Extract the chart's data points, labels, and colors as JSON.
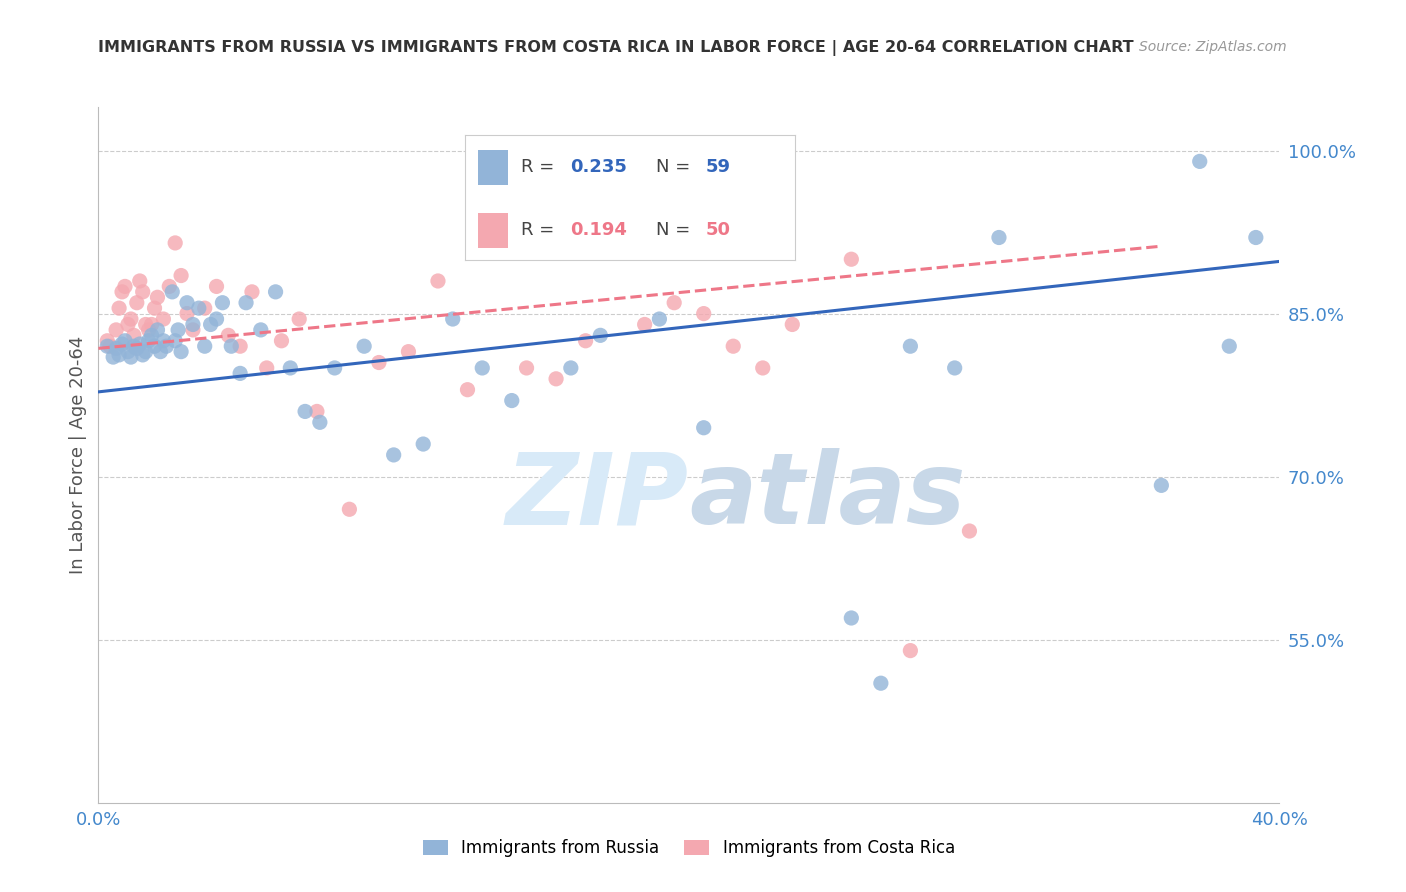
{
  "title": "IMMIGRANTS FROM RUSSIA VS IMMIGRANTS FROM COSTA RICA IN LABOR FORCE | AGE 20-64 CORRELATION CHART",
  "source": "Source: ZipAtlas.com",
  "ylabel": "In Labor Force | Age 20-64",
  "ytick_labels": [
    "100.0%",
    "85.0%",
    "70.0%",
    "55.0%"
  ],
  "ytick_values": [
    1.0,
    0.85,
    0.7,
    0.55
  ],
  "xlim": [
    0.0,
    0.4
  ],
  "ylim": [
    0.4,
    1.04
  ],
  "watermark_zip": "ZIP",
  "watermark_atlas": "atlas",
  "legend_russia_R": "0.235",
  "legend_russia_N": "59",
  "legend_costarica_R": "0.194",
  "legend_costarica_N": "50",
  "russia_color": "#92B4D8",
  "costarica_color": "#F4A8B0",
  "russia_line_color": "#3366BB",
  "costarica_line_color": "#EE7788",
  "russia_scatter_x": [
    0.003,
    0.005,
    0.006,
    0.007,
    0.008,
    0.009,
    0.01,
    0.011,
    0.012,
    0.013,
    0.014,
    0.015,
    0.016,
    0.017,
    0.018,
    0.019,
    0.02,
    0.021,
    0.022,
    0.023,
    0.025,
    0.026,
    0.027,
    0.028,
    0.03,
    0.032,
    0.034,
    0.036,
    0.038,
    0.04,
    0.042,
    0.045,
    0.048,
    0.05,
    0.055,
    0.06,
    0.065,
    0.07,
    0.075,
    0.08,
    0.09,
    0.1,
    0.11,
    0.12,
    0.13,
    0.14,
    0.16,
    0.17,
    0.19,
    0.205,
    0.255,
    0.265,
    0.275,
    0.29,
    0.305,
    0.36,
    0.373,
    0.383,
    0.392
  ],
  "russia_scatter_y": [
    0.82,
    0.81,
    0.818,
    0.812,
    0.822,
    0.825,
    0.815,
    0.81,
    0.82,
    0.818,
    0.822,
    0.812,
    0.815,
    0.825,
    0.83,
    0.82,
    0.835,
    0.815,
    0.825,
    0.82,
    0.87,
    0.825,
    0.835,
    0.815,
    0.86,
    0.84,
    0.855,
    0.82,
    0.84,
    0.845,
    0.86,
    0.82,
    0.795,
    0.86,
    0.835,
    0.87,
    0.8,
    0.76,
    0.75,
    0.8,
    0.82,
    0.72,
    0.73,
    0.845,
    0.8,
    0.77,
    0.8,
    0.83,
    0.845,
    0.745,
    0.57,
    0.51,
    0.82,
    0.8,
    0.92,
    0.692,
    0.99,
    0.82,
    0.92
  ],
  "costarica_scatter_x": [
    0.003,
    0.004,
    0.006,
    0.007,
    0.008,
    0.009,
    0.01,
    0.011,
    0.012,
    0.013,
    0.014,
    0.015,
    0.016,
    0.017,
    0.018,
    0.019,
    0.02,
    0.022,
    0.024,
    0.026,
    0.028,
    0.03,
    0.032,
    0.036,
    0.04,
    0.044,
    0.048,
    0.052,
    0.057,
    0.062,
    0.068,
    0.074,
    0.085,
    0.095,
    0.105,
    0.115,
    0.125,
    0.145,
    0.155,
    0.165,
    0.175,
    0.185,
    0.195,
    0.205,
    0.215,
    0.225,
    0.235,
    0.255,
    0.275,
    0.295
  ],
  "costarica_scatter_y": [
    0.825,
    0.82,
    0.835,
    0.855,
    0.87,
    0.875,
    0.84,
    0.845,
    0.83,
    0.86,
    0.88,
    0.87,
    0.84,
    0.835,
    0.84,
    0.855,
    0.865,
    0.845,
    0.875,
    0.915,
    0.885,
    0.85,
    0.835,
    0.855,
    0.875,
    0.83,
    0.82,
    0.87,
    0.8,
    0.825,
    0.845,
    0.76,
    0.67,
    0.805,
    0.815,
    0.88,
    0.78,
    0.8,
    0.79,
    0.825,
    0.91,
    0.84,
    0.86,
    0.85,
    0.82,
    0.8,
    0.84,
    0.9,
    0.54,
    0.65
  ],
  "russia_trendline_x": [
    0.0,
    0.4
  ],
  "russia_trendline_y": [
    0.778,
    0.898
  ],
  "costarica_trendline_x": [
    0.0,
    0.36
  ],
  "costarica_trendline_y": [
    0.818,
    0.912
  ],
  "background_color": "#ffffff",
  "grid_color": "#cccccc",
  "axis_color": "#4488CC",
  "title_color": "#333333",
  "watermark_color": "#D8EAF8",
  "watermark_atlas_color": "#C8D8E8"
}
